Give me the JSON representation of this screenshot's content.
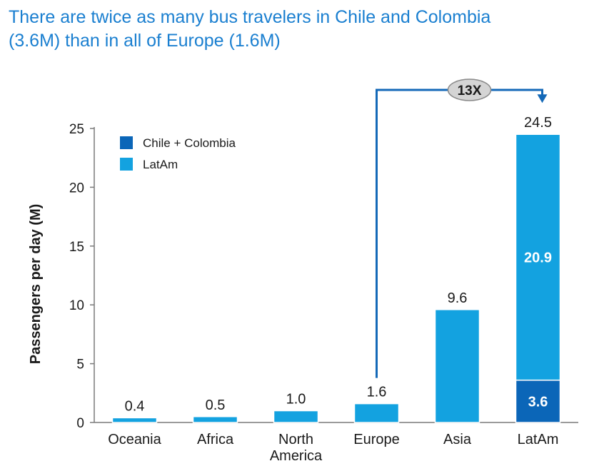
{
  "title_line1": "There are twice as many bus travelers in Chile and Colombia",
  "title_line2": "(3.6M) than in all of Europe (1.6M)",
  "colors": {
    "title": "#1a7fd0",
    "latam": "#13a2e0",
    "chile_colombia": "#0b66b8",
    "arrow": "#1469b8"
  },
  "chart_data": {
    "type": "bar",
    "stacked": true,
    "categories": [
      "Oceania",
      "Africa",
      "North America",
      "Europe",
      "Asia",
      "LatAm"
    ],
    "category_lines": [
      [
        "Oceania"
      ],
      [
        "Africa"
      ],
      [
        "North",
        "America"
      ],
      [
        "Europe"
      ],
      [
        "Asia"
      ],
      [
        "LatAm"
      ]
    ],
    "series": [
      {
        "name": "Chile + Colombia",
        "values": [
          0,
          0,
          0,
          0,
          0,
          3.6
        ]
      },
      {
        "name": "LatAm",
        "values": [
          0.4,
          0.5,
          1.0,
          1.6,
          9.6,
          20.9
        ]
      }
    ],
    "totals": [
      "0.4",
      "0.5",
      "1.0",
      "1.6",
      "9.6",
      "24.5"
    ],
    "segment_labels": {
      "LatAm": {
        "Chile + Colombia": "3.6",
        "LatAm": "20.9"
      }
    },
    "ylabel": "Passengers per day (M)",
    "ylim": [
      0,
      25
    ],
    "yticks": [
      0,
      5,
      10,
      15,
      20,
      25
    ],
    "legend": [
      "Chile + Colombia",
      "LatAm"
    ],
    "legend_position": "top-left",
    "annotation": {
      "text": "13X",
      "from": "Europe",
      "to": "LatAm"
    },
    "grid": false
  }
}
